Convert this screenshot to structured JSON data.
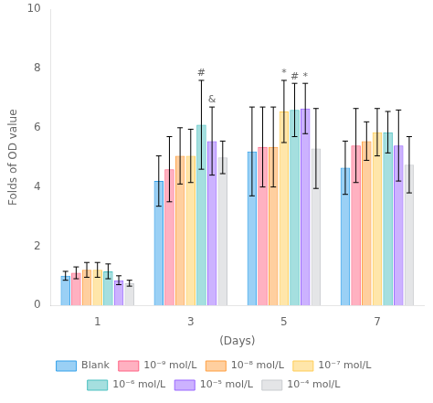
{
  "chart_data": {
    "type": "bar",
    "xlabel": "(Days)",
    "ylabel": "Folds of OD value",
    "categories": [
      "1",
      "3",
      "5",
      "7"
    ],
    "series": [
      {
        "name": "Blank",
        "values": [
          1.0,
          4.2,
          5.2,
          4.65
        ],
        "errors": [
          0.15,
          0.85,
          1.5,
          0.9
        ]
      },
      {
        "name": "10⁻⁹ mol/L",
        "values": [
          1.1,
          4.6,
          5.35,
          5.4
        ],
        "errors": [
          0.2,
          1.1,
          1.35,
          1.25
        ]
      },
      {
        "name": "10⁻⁸ mol/L",
        "values": [
          1.2,
          5.05,
          5.35,
          5.55
        ],
        "errors": [
          0.25,
          0.95,
          1.35,
          0.65
        ]
      },
      {
        "name": "10⁻⁷ mol/L",
        "values": [
          1.2,
          5.05,
          6.55,
          5.85
        ],
        "errors": [
          0.25,
          0.9,
          1.05,
          0.8
        ]
      },
      {
        "name": "10⁻⁶ mol/L",
        "values": [
          1.15,
          6.1,
          6.6,
          5.85
        ],
        "errors": [
          0.25,
          1.5,
          0.9,
          0.7
        ]
      },
      {
        "name": "10⁻⁵ mol/L",
        "values": [
          0.85,
          5.55,
          6.65,
          5.4
        ],
        "errors": [
          0.15,
          1.15,
          0.85,
          1.2
        ]
      },
      {
        "name": "10⁻⁴ mol/L",
        "values": [
          0.75,
          5.0,
          5.3,
          4.75
        ],
        "errors": [
          0.1,
          0.55,
          1.35,
          0.95
        ]
      }
    ],
    "annotations": [
      {
        "text": "#",
        "category": "3",
        "series": "10⁻⁶ mol/L"
      },
      {
        "text": "&",
        "category": "3",
        "series": "10⁻⁵ mol/L"
      },
      {
        "text": "*",
        "category": "5",
        "series": "10⁻⁷ mol/L"
      },
      {
        "text": "#",
        "category": "5",
        "series": "10⁻⁶ mol/L"
      },
      {
        "text": "*",
        "category": "5",
        "series": "10⁻⁵ mol/L"
      }
    ],
    "ylim": [
      0,
      10
    ],
    "yticks": [
      0,
      2,
      4,
      6,
      8,
      10
    ],
    "grid": false,
    "legend": "bottom"
  }
}
